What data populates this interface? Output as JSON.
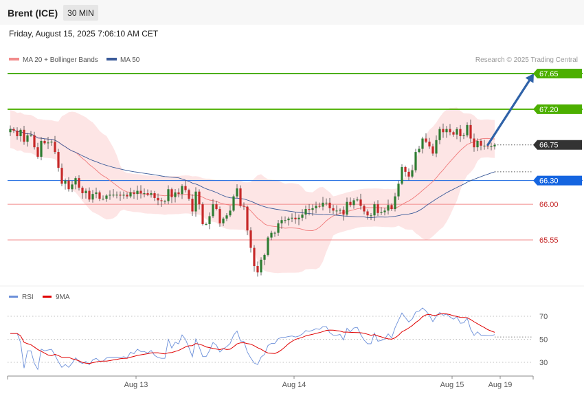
{
  "header": {
    "instrument": "Brent (ICE)",
    "timeframe": "30 MIN",
    "datetime": "Friday, August 15, 2025 7:06:10 AM CET",
    "credit": "Research © 2025 Trading Central"
  },
  "colors": {
    "up": "#2e7d32",
    "down": "#c62828",
    "target": "#4caf00",
    "pivot": "#1565e0",
    "support": "#f28b8b",
    "last": "#333333",
    "ma20": "#f07a7a",
    "band": "#fde0e0",
    "ma50": "#3a5a99",
    "rsi": "#6b8fd9",
    "rsi_ma": "#e00000",
    "arrow": "#2f62a8"
  },
  "chart_data": [
    {
      "type": "candlestick",
      "legend": [
        {
          "key": "ma20",
          "label": "MA 20 + Bollinger Bands"
        },
        {
          "key": "ma50",
          "label": "MA 50"
        }
      ],
      "ylim": [
        65.08,
        67.75
      ],
      "x_ticks": [
        {
          "i": 36,
          "label": "Aug 13"
        },
        {
          "i": 82,
          "label": "Aug 14"
        },
        {
          "i": 128,
          "label": "Aug 15"
        },
        {
          "i": 142,
          "label": "Aug 19"
        }
      ],
      "levels": [
        {
          "value": 67.65,
          "label": "67.65",
          "role": "target"
        },
        {
          "value": 67.2,
          "label": "67.20",
          "role": "target"
        },
        {
          "value": 66.75,
          "label": "66.75",
          "role": "last"
        },
        {
          "value": 66.3,
          "label": "66.30",
          "role": "pivot"
        },
        {
          "value": 66.0,
          "label": "66.00",
          "role": "support"
        },
        {
          "value": 65.55,
          "label": "65.55",
          "role": "support"
        }
      ],
      "forecast_arrow": {
        "from": [
          139,
          66.75
        ],
        "to": [
          153,
          67.65
        ]
      },
      "close": [
        66.95,
        66.93,
        66.86,
        66.94,
        66.79,
        66.87,
        66.87,
        66.72,
        66.6,
        66.8,
        66.77,
        66.78,
        66.79,
        66.66,
        66.46,
        66.26,
        66.3,
        66.19,
        66.25,
        66.33,
        66.21,
        66.14,
        66.17,
        66.06,
        66.13,
        66.15,
        66.07,
        66.07,
        66.11,
        66.12,
        66.12,
        66.12,
        66.11,
        66.12,
        66.1,
        66.15,
        66.13,
        66.17,
        66.14,
        66.14,
        66.12,
        66.14,
        66.08,
        66.05,
        66.04,
        66.04,
        66.19,
        66.09,
        66.15,
        66.13,
        66.23,
        66.18,
        66.07,
        65.91,
        66.16,
        66.0,
        65.75,
        65.75,
        65.85,
        66.0,
        65.94,
        65.76,
        65.82,
        65.86,
        65.92,
        66.1,
        66.2,
        65.98,
        65.97,
        65.67,
        65.45,
        65.22,
        65.14,
        65.3,
        65.36,
        65.58,
        65.64,
        65.64,
        65.76,
        65.8,
        65.8,
        65.82,
        65.83,
        65.81,
        65.83,
        65.87,
        65.94,
        65.93,
        65.95,
        65.98,
        65.97,
        66.02,
        66.02,
        65.95,
        65.92,
        65.92,
        65.93,
        65.87,
        66.03,
        65.99,
        66.05,
        66.06,
        65.98,
        65.91,
        65.86,
        65.86,
        66.0,
        65.89,
        65.9,
        65.92,
        65.99,
        65.94,
        66.1,
        66.26,
        66.47,
        66.41,
        66.35,
        66.43,
        66.66,
        66.7,
        66.83,
        66.79,
        66.73,
        66.64,
        66.81,
        66.95,
        66.91,
        66.95,
        66.91,
        66.88,
        66.95,
        66.86,
        66.87,
        67.0,
        66.83,
        66.72,
        66.8,
        66.74,
        66.74,
        66.73,
        66.73,
        66.75
      ],
      "rsi": {
        "ylim": [
          18,
          80
        ],
        "ticks": [
          70,
          50,
          30
        ],
        "legend": [
          {
            "key": "rsi",
            "label": "RSI"
          },
          {
            "key": "rsi_ma",
            "label": "9MA"
          }
        ],
        "last_value": 52
      }
    }
  ]
}
